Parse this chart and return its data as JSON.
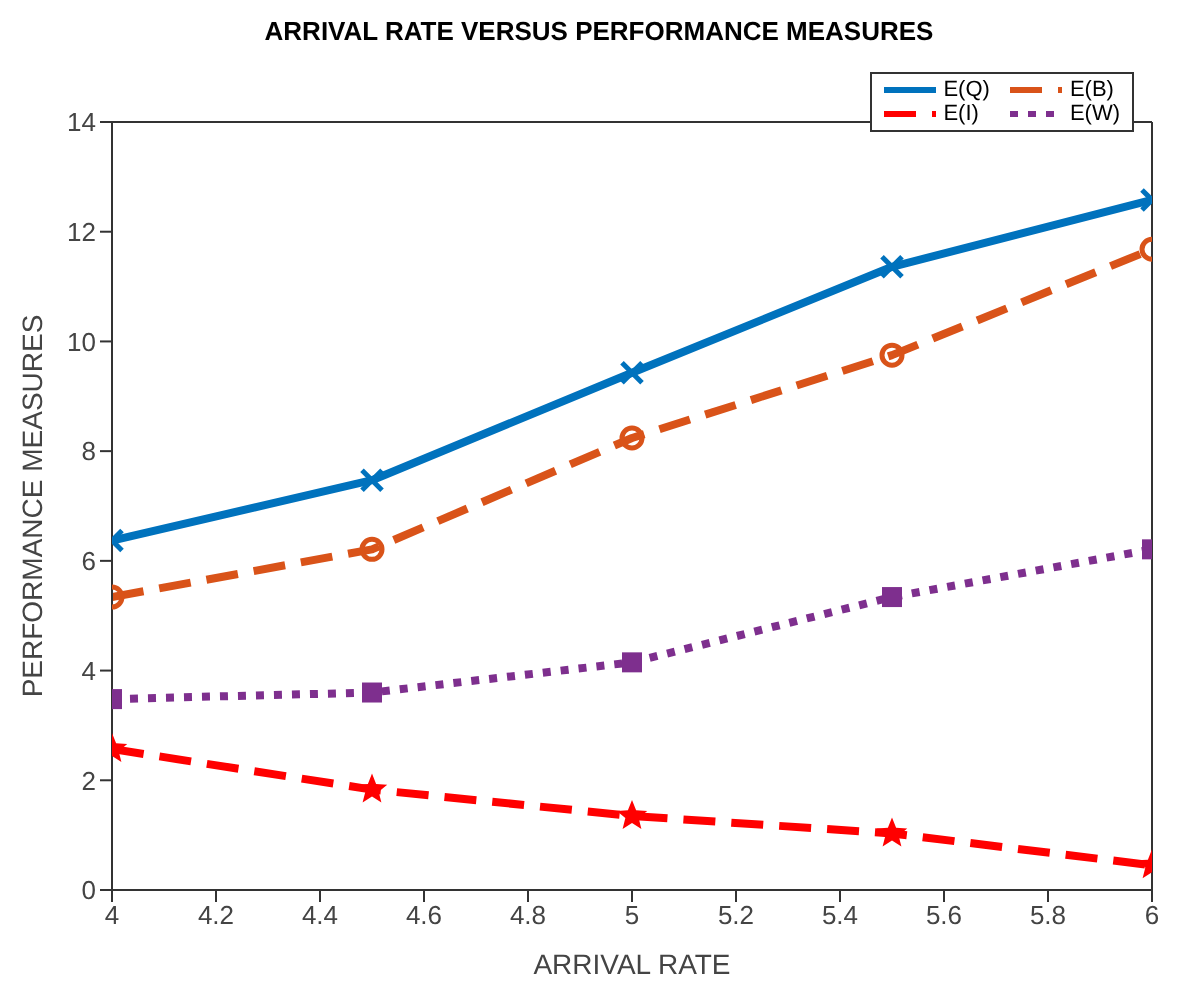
{
  "chart_data": {
    "type": "line",
    "title": "ARRIVAL RATE VERSUS PERFORMANCE MEASURES",
    "xlabel": "ARRIVAL RATE",
    "ylabel": "PERFORMANCE MEASURES",
    "x": [
      4,
      4.5,
      5,
      5.5,
      6
    ],
    "series": [
      {
        "name": "E(Q)",
        "color": "#0072bd",
        "values": [
          6.37,
          7.47,
          9.43,
          11.36,
          12.58
        ],
        "marker": "cross",
        "line_style": "solid"
      },
      {
        "name": "E(B)",
        "color": "#d95319",
        "values": [
          5.34,
          6.21,
          8.24,
          9.75,
          11.68
        ],
        "marker": "circle",
        "line_style": "dashed"
      },
      {
        "name": "E(I)",
        "color": "#ff0000",
        "values": [
          2.57,
          1.83,
          1.35,
          1.03,
          0.45
        ],
        "marker": "star",
        "line_style": "dashed"
      },
      {
        "name": "E(W)",
        "color": "#7e2f8e",
        "values": [
          3.48,
          3.6,
          4.15,
          5.34,
          6.21
        ],
        "marker": "square",
        "line_style": "dotted"
      }
    ],
    "xlim": [
      4,
      6
    ],
    "xticks": [
      4,
      4.2,
      4.4,
      4.6,
      4.8,
      5,
      5.2,
      5.4,
      5.6,
      5.8,
      6
    ],
    "ylim": [
      0,
      14
    ],
    "yticks": [
      0,
      2,
      4,
      6,
      8,
      10,
      12,
      14
    ],
    "grid": false,
    "legend": "top right"
  }
}
